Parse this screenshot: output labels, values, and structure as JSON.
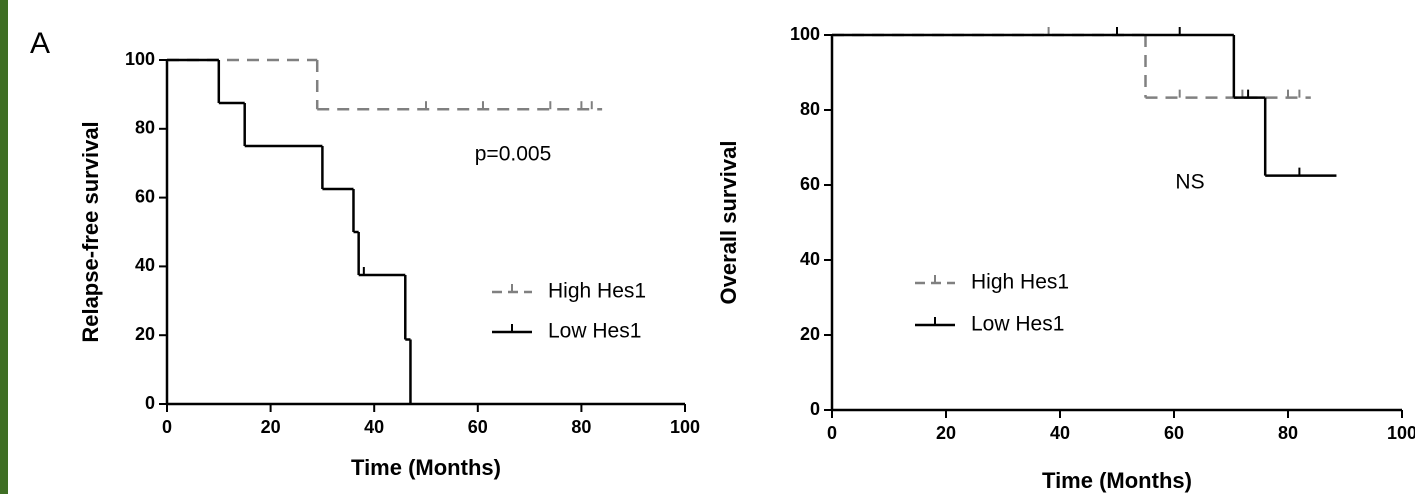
{
  "chart_data": [
    {
      "type": "step",
      "panel_label": "A",
      "ylabel": "Relapse-free survival",
      "xlabel": "Time (Months)",
      "xlim": [
        0,
        100
      ],
      "ylim": [
        0,
        100
      ],
      "xticks": [
        0,
        20,
        40,
        60,
        80,
        100
      ],
      "yticks": [
        0,
        20,
        40,
        60,
        80,
        100
      ],
      "annotation": "p=0.005",
      "series": [
        {
          "name": "High Hes1",
          "color": "#808080",
          "dashed": true,
          "x": [
            0,
            29,
            84
          ],
          "values": [
            100,
            85.7,
            85.7
          ],
          "censored_x": [
            50,
            61,
            74,
            80,
            82
          ]
        },
        {
          "name": "Low Hes1",
          "color": "#000000",
          "dashed": false,
          "x": [
            0,
            10,
            15,
            30,
            36,
            37,
            46,
            47
          ],
          "values": [
            100,
            87.5,
            75,
            62.5,
            50,
            37.5,
            18.75,
            0
          ],
          "censored_x": [
            38
          ]
        }
      ]
    },
    {
      "type": "step",
      "ylabel": "Overall survival",
      "xlabel": "Time (Months)",
      "xlim": [
        0,
        100
      ],
      "ylim": [
        0,
        100
      ],
      "xticks": [
        0,
        20,
        40,
        60,
        80,
        100
      ],
      "yticks": [
        0,
        20,
        40,
        60,
        80,
        100
      ],
      "annotation": "NS",
      "series": [
        {
          "name": "High Hes1",
          "color": "#808080",
          "dashed": true,
          "x": [
            0,
            55,
            84
          ],
          "values": [
            100,
            83.3,
            83.3
          ],
          "censored_x": [
            38,
            61,
            72,
            80,
            82
          ]
        },
        {
          "name": "Low Hes1",
          "color": "#000000",
          "dashed": false,
          "x": [
            0,
            70.5,
            76,
            88.5
          ],
          "values": [
            100,
            83.3,
            62.5,
            62.5
          ],
          "censored_x": [
            50,
            61,
            73,
            82
          ]
        }
      ]
    }
  ]
}
